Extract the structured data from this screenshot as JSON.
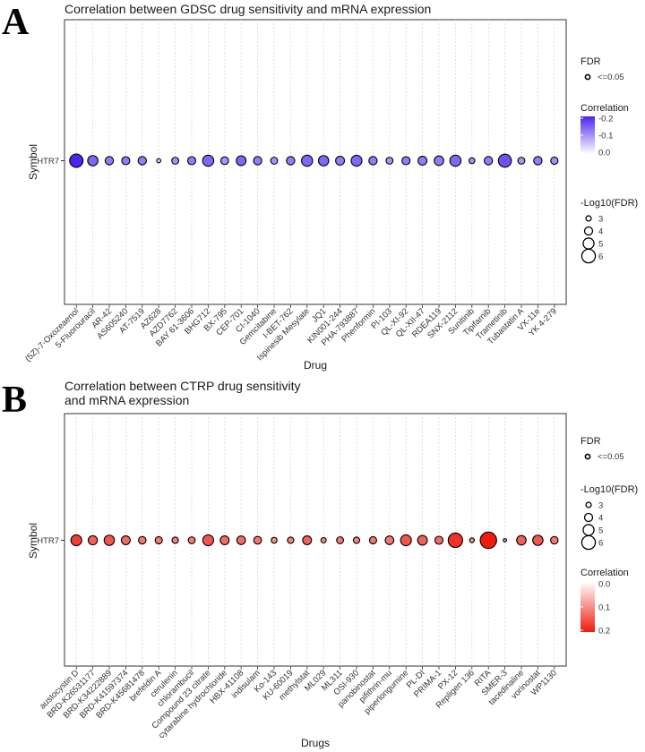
{
  "panel_letters": {
    "a": "A",
    "b": "B"
  },
  "chart_data": [
    {
      "type": "scatter",
      "title": "Correlation between GDSC drug sensitivity and mRNA expression",
      "xlabel": "Drug",
      "ylabel": "Symbol",
      "y_categories": [
        "HTR7"
      ],
      "categories": [
        "(5Z)-7-Oxozeaenol",
        "5-Fluorouracil",
        "AR-42",
        "AS605240",
        "AT-7519",
        "AZ628",
        "AZD7762",
        "BAY 61-3606",
        "BHG712",
        "BX-795",
        "CEP-701",
        "CI-1040",
        "Gemcitabine",
        "I-BET-762",
        "Ispinesib Mesylate",
        "JQ1",
        "KIN001-244",
        "PHA-793887",
        "Phenformin",
        "PI-103",
        "QL-XI-92",
        "QL-XII-47",
        "RDEA119",
        "SNX-2112",
        "Sunitinib",
        "Tipifarnib",
        "Trametinib",
        "Tubastatin A",
        "VX-11e",
        "YK 4-279"
      ],
      "correlation": [
        -0.2,
        -0.14,
        -0.12,
        -0.12,
        -0.12,
        -0.05,
        -0.1,
        -0.12,
        -0.14,
        -0.1,
        -0.14,
        -0.12,
        -0.1,
        -0.12,
        -0.14,
        -0.14,
        -0.12,
        -0.14,
        -0.12,
        -0.1,
        -0.12,
        -0.12,
        -0.12,
        -0.14,
        -0.1,
        -0.12,
        -0.16,
        -0.1,
        -0.12,
        -0.1
      ],
      "neg_log10_fdr": [
        5.9,
        4.8,
        4.1,
        4.0,
        4.1,
        2.6,
        3.6,
        4.0,
        5.1,
        3.9,
        4.6,
        4.1,
        3.6,
        4.1,
        5.1,
        4.8,
        4.3,
        5.0,
        4.1,
        3.6,
        4.0,
        4.3,
        4.5,
        5.1,
        3.2,
        4.1,
        5.8,
        3.6,
        4.1,
        3.7
      ],
      "color_scale": {
        "low": "#ffffff",
        "high": "#4e24f0"
      },
      "legend": {
        "fdr_title": "FDR",
        "fdr_label": "<=0.05",
        "correlation_title": "Correlation",
        "correlation_ticks": [
          "-0.2",
          "-0.1",
          "0.0"
        ],
        "correlation_range": [
          -0.2,
          0.0
        ],
        "size_title": "-Log10(FDR)",
        "size_ticks": [
          "3",
          "4",
          "5",
          "6"
        ],
        "size_values": [
          3,
          4,
          5,
          6
        ]
      }
    },
    {
      "type": "scatter",
      "title": "Correlation between CTRP drug sensitivity",
      "title_line2": "and mRNA expression",
      "xlabel": "Drugs",
      "ylabel": "Symbol",
      "y_categories": [
        "HTR7"
      ],
      "categories": [
        "austocystin D",
        "BRD-K26531177",
        "BRD-K34222889",
        "BRD-K41597374",
        "BRD-K45681478",
        "brefeldin A",
        "cerulenin",
        "chlorambucil",
        "Compound 23 citrate",
        "cytarabine hydrochloride",
        "HBX-41108",
        "indisulam",
        "Ko-143",
        "KU-60019",
        "methylstat",
        "ML029",
        "ML311",
        "OSI-930",
        "panobinostat",
        "pifithrin-mu",
        "piperlongumine",
        "PL-DI",
        "PRIMA-1",
        "PX-12",
        "Repligen 136",
        "RITA",
        "SMER-3",
        "tacedinaline",
        "vorinostat",
        "WP1130"
      ],
      "correlation": [
        0.17,
        0.14,
        0.15,
        0.13,
        0.12,
        0.12,
        0.11,
        0.12,
        0.15,
        0.13,
        0.13,
        0.12,
        0.1,
        0.11,
        0.14,
        0.1,
        0.12,
        0.11,
        0.12,
        0.12,
        0.15,
        0.14,
        0.13,
        0.18,
        0.1,
        0.2,
        0.09,
        0.14,
        0.15,
        0.12
      ],
      "neg_log10_fdr": [
        5.0,
        4.4,
        4.8,
        4.3,
        3.8,
        3.7,
        3.4,
        3.6,
        5.0,
        4.3,
        4.2,
        3.9,
        3.2,
        3.4,
        4.3,
        3.0,
        3.6,
        3.4,
        3.7,
        4.2,
        5.0,
        4.6,
        4.0,
        6.3,
        2.8,
        7.0,
        2.3,
        4.5,
        4.8,
        3.8
      ],
      "color_scale": {
        "low": "#ffffff",
        "high": "#ee1c10"
      },
      "legend": {
        "fdr_title": "FDR",
        "fdr_label": "<=0.05",
        "size_title": "-Log10(FDR)",
        "size_ticks": [
          "3",
          "4",
          "5",
          "6"
        ],
        "size_values": [
          3,
          4,
          5,
          6
        ],
        "correlation_title": "Correlation",
        "correlation_ticks": [
          "0.0",
          "0.1",
          "0.2"
        ],
        "correlation_range": [
          0.0,
          0.2
        ]
      }
    }
  ]
}
